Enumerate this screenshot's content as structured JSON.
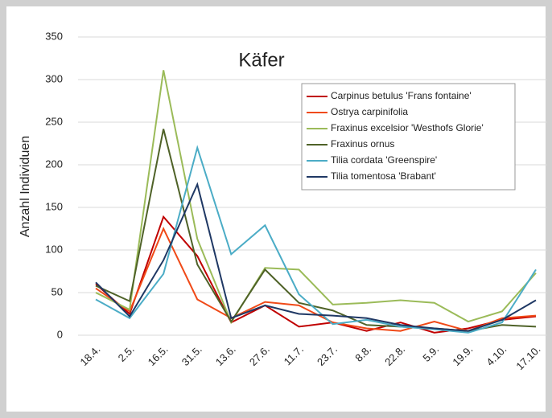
{
  "chart_data": {
    "type": "line",
    "title": "Käfer",
    "y_label": "Anzahl Individuen",
    "categories": [
      "18.4.",
      "2.5.",
      "16.5.",
      "31.5.",
      "13.6.",
      "27.6.",
      "11.7.",
      "23.7.",
      "8.8.",
      "22.8.",
      "5.9.",
      "19.9.",
      "4.10.",
      "17.10."
    ],
    "series": [
      {
        "name": "Carpinus betulus 'Frans fontaine'",
        "color": "#c00000",
        "values": [
          60,
          25,
          139,
          93,
          15,
          35,
          10,
          15,
          5,
          15,
          3,
          8,
          18,
          22
        ]
      },
      {
        "name": "Ostrya carpinifolia",
        "color": "#f04a18",
        "values": [
          55,
          28,
          125,
          42,
          20,
          39,
          35,
          15,
          8,
          5,
          16,
          5,
          20,
          23
        ]
      },
      {
        "name": "Fraxinus excelsior 'Westhofs Glorie'",
        "color": "#9bbb59",
        "values": [
          50,
          30,
          311,
          113,
          15,
          79,
          77,
          36,
          38,
          41,
          38,
          16,
          28,
          73
        ]
      },
      {
        "name": "Fraxinus ornus",
        "color": "#4f6228",
        "values": [
          58,
          40,
          242,
          83,
          16,
          77,
          38,
          29,
          12,
          10,
          8,
          5,
          12,
          10
        ]
      },
      {
        "name": "Tilia cordata 'Greenspire'",
        "color": "#4bacc6",
        "values": [
          42,
          20,
          72,
          220,
          95,
          129,
          48,
          13,
          18,
          10,
          7,
          3,
          15,
          77
        ]
      },
      {
        "name": "Tilia tomentosa 'Brabant'",
        "color": "#1f3864",
        "values": [
          62,
          22,
          88,
          177,
          20,
          35,
          25,
          23,
          20,
          12,
          8,
          5,
          18,
          41
        ]
      }
    ],
    "ylim": [
      0,
      350
    ],
    "yticks": [
      0,
      50,
      100,
      150,
      200,
      250,
      300,
      350
    ],
    "grid": true
  }
}
